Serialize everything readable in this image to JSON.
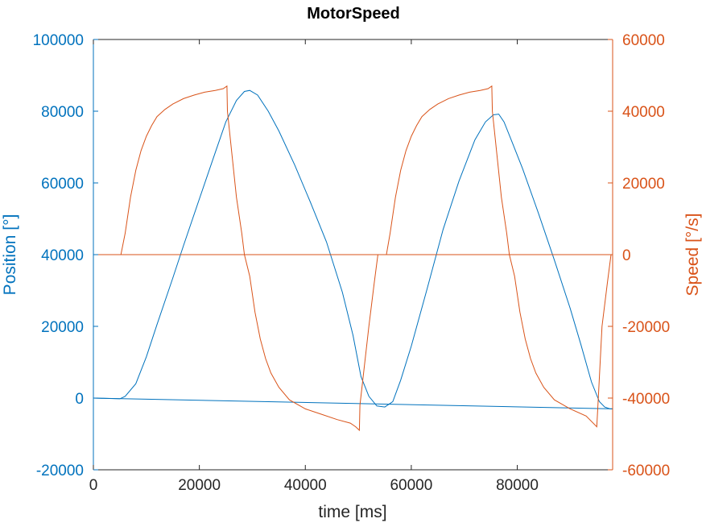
{
  "chart_data": {
    "type": "line",
    "title": "MotorSpeed",
    "xlabel": "time [ms]",
    "ylabel_left": "Position [°]",
    "ylabel_right": "Speed [°/s]",
    "xlim": [
      0,
      98000
    ],
    "ylim_left": [
      -20000,
      100000
    ],
    "ylim_right": [
      -60000,
      60000
    ],
    "x_ticks": [
      "0",
      "20000",
      "40000",
      "60000",
      "80000"
    ],
    "y_left_ticks": [
      "-20000",
      "0",
      "20000",
      "40000",
      "60000",
      "80000",
      "100000"
    ],
    "y_right_ticks": [
      "-60000",
      "-40000",
      "-20000",
      "0",
      "20000",
      "40000",
      "60000"
    ],
    "grid": false,
    "colors": {
      "position": "#0072BD",
      "speed": "#D95319",
      "axes": "#262626"
    },
    "series": [
      {
        "axis": "left",
        "color": "#0072BD",
        "x": [
          0,
          5000,
          6000,
          8000,
          10000,
          12000,
          15000,
          17000,
          20000,
          23000,
          25000,
          27000,
          28500,
          29500,
          31000,
          33000,
          35000,
          38000,
          41000,
          44000,
          47000,
          49000,
          50500,
          52000,
          53500,
          55000,
          56500,
          58000,
          60000,
          63000,
          66000,
          69000,
          72000,
          74000,
          75500,
          76500,
          77500,
          79000,
          81000,
          84000,
          87000,
          90000,
          92000,
          94000,
          95500,
          96500,
          97500,
          98000
        ],
        "y": [
          0,
          -200,
          500,
          4000,
          11500,
          20500,
          33500,
          42500,
          55500,
          68500,
          77000,
          83000,
          85500,
          85800,
          84500,
          80000,
          74500,
          65000,
          54500,
          43500,
          29500,
          17500,
          6000,
          500,
          -2200,
          -2500,
          -1000,
          5000,
          14500,
          30500,
          47000,
          60500,
          72000,
          77000,
          79000,
          79200,
          77000,
          71500,
          64000,
          51500,
          38500,
          25000,
          15000,
          4500,
          -1000,
          -2500,
          -3000,
          -3000
        ]
      },
      {
        "axis": "left",
        "color": "#0072BD",
        "x": [
          0,
          98000
        ],
        "y": [
          0,
          -3000
        ]
      },
      {
        "axis": "right",
        "color": "#D95319",
        "x": [
          5200,
          6000,
          7000,
          8000,
          9000,
          10000,
          11000,
          12000,
          13500,
          15000,
          17000,
          19000,
          21000,
          23000,
          24500,
          25200,
          25300,
          27000,
          28000,
          28500,
          29500,
          30500,
          31500,
          32500,
          33500,
          35000,
          37000,
          40000,
          43000,
          46000,
          48500,
          49500,
          50200,
          50300,
          52000,
          53000,
          53700,
          55300,
          56000,
          57000,
          58000,
          59000,
          60000,
          61000,
          62000,
          63500,
          65000,
          67000,
          69000,
          71000,
          73000,
          74500,
          75200,
          75300,
          77000,
          78000,
          78500,
          79500,
          80500,
          81500,
          82500,
          83500,
          85000,
          87000,
          90000,
          93000,
          95000,
          95300,
          96000,
          97000,
          97700
        ],
        "y": [
          0,
          6000,
          16000,
          23500,
          29000,
          33000,
          36000,
          38500,
          40500,
          42000,
          43500,
          44500,
          45300,
          45800,
          46300,
          47000,
          40000,
          16000,
          6000,
          0,
          -6000,
          -16000,
          -23500,
          -29000,
          -33000,
          -37000,
          -40500,
          -43000,
          -44500,
          -46000,
          -47000,
          -48000,
          -49000,
          -42000,
          -20000,
          -8000,
          0,
          0,
          6000,
          16000,
          23500,
          29000,
          33000,
          36000,
          38500,
          40500,
          42000,
          43500,
          44500,
          45300,
          45800,
          46300,
          47000,
          40000,
          16000,
          6000,
          0,
          -6000,
          -16000,
          -23500,
          -29000,
          -33000,
          -37000,
          -40500,
          -43000,
          -45000,
          -48000,
          -40000,
          -20000,
          -8000,
          0
        ]
      },
      {
        "axis": "right",
        "color": "#D95319",
        "x": [
          0,
          98000
        ],
        "y": [
          0,
          0
        ]
      }
    ]
  }
}
